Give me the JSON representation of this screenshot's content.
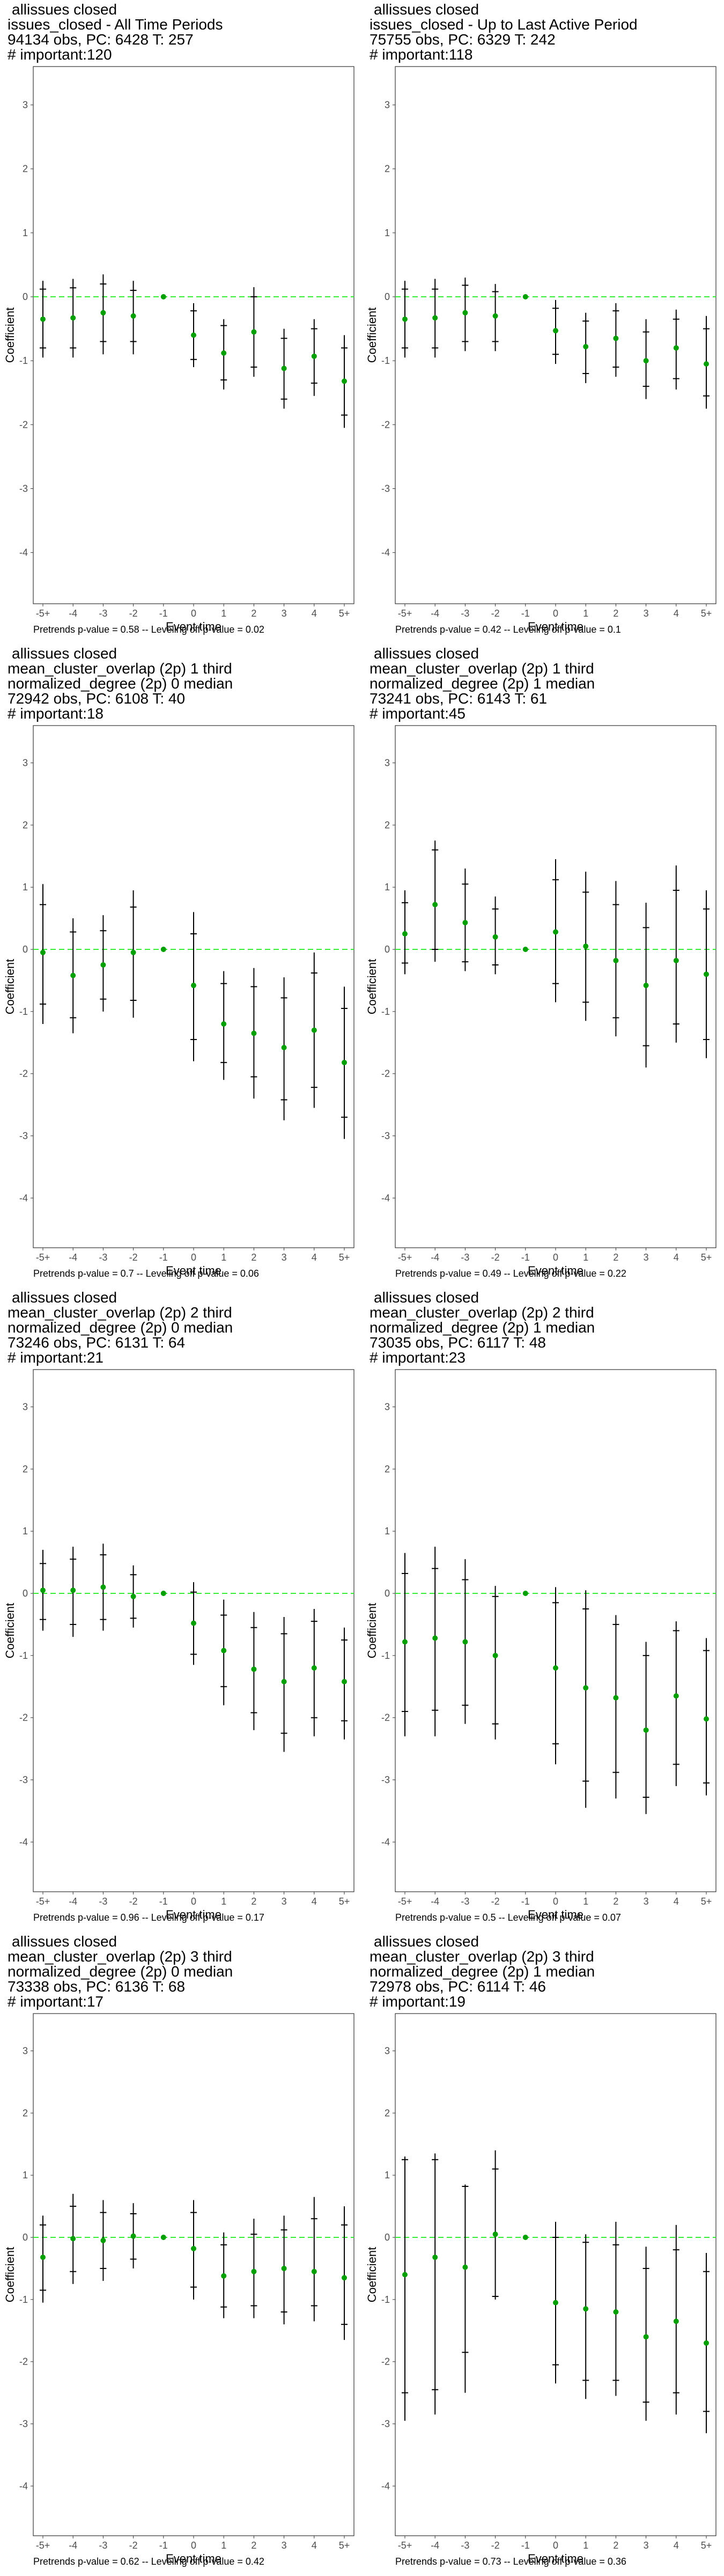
{
  "colors": {
    "point": "#00a000",
    "ci": "#000000",
    "zero_line": "#33ee33",
    "frame": "#333333",
    "tick_text": "#4d4d4d"
  },
  "chart_data": [
    {
      "type": "scatter",
      "title_lines": [
        "allissues closed",
        "issues_closed - All Time Periods",
        "94134 obs, PC: 6428 T: 257",
        "# important:120"
      ],
      "footer": "Pretrends p-value = 0.58 -- Leveling off p-value = 0.02",
      "xlabel": "Event time",
      "ylabel": "Coefficient",
      "categories": [
        "-5+",
        "-4",
        "-3",
        "-2",
        "-1",
        "0",
        "1",
        "2",
        "3",
        "4",
        "5+"
      ],
      "ylim": [
        -4.8,
        3.6
      ],
      "yticks": [
        -4,
        -3,
        -2,
        -1,
        0,
        1,
        2,
        3
      ],
      "values": [
        -0.35,
        -0.33,
        -0.25,
        -0.3,
        0,
        -0.6,
        -0.88,
        -0.55,
        -1.12,
        -0.93,
        -1.32
      ],
      "ci_outer": [
        [
          -0.95,
          0.25
        ],
        [
          -0.95,
          0.28
        ],
        [
          -0.9,
          0.35
        ],
        [
          -0.9,
          0.25
        ],
        [
          0,
          0
        ],
        [
          -1.1,
          -0.1
        ],
        [
          -1.45,
          -0.35
        ],
        [
          -1.25,
          0.15
        ],
        [
          -1.75,
          -0.5
        ],
        [
          -1.55,
          -0.35
        ],
        [
          -2.05,
          -0.6
        ]
      ],
      "ci_inner": [
        [
          -0.8,
          0.12
        ],
        [
          -0.8,
          0.14
        ],
        [
          -0.7,
          0.2
        ],
        [
          -0.7,
          0.1
        ],
        [
          0,
          0
        ],
        [
          -0.98,
          -0.22
        ],
        [
          -1.3,
          -0.45
        ],
        [
          -1.1,
          0.0
        ],
        [
          -1.6,
          -0.65
        ],
        [
          -1.35,
          -0.5
        ],
        [
          -1.85,
          -0.8
        ]
      ]
    },
    {
      "type": "scatter",
      "title_lines": [
        "allissues closed",
        "issues_closed - Up to Last Active Period",
        "75755 obs, PC: 6329 T: 242",
        "# important:118"
      ],
      "footer": "Pretrends p-value = 0.42 -- Leveling off p-value = 0.1",
      "xlabel": "Event time",
      "ylabel": "Coefficient",
      "categories": [
        "-5+",
        "-4",
        "-3",
        "-2",
        "-1",
        "0",
        "1",
        "2",
        "3",
        "4",
        "5+"
      ],
      "ylim": [
        -4.8,
        3.6
      ],
      "yticks": [
        -4,
        -3,
        -2,
        -1,
        0,
        1,
        2,
        3
      ],
      "values": [
        -0.35,
        -0.33,
        -0.25,
        -0.3,
        0,
        -0.53,
        -0.78,
        -0.65,
        -1.0,
        -0.8,
        -1.05
      ],
      "ci_outer": [
        [
          -0.95,
          0.25
        ],
        [
          -0.95,
          0.28
        ],
        [
          -0.85,
          0.3
        ],
        [
          -0.85,
          0.2
        ],
        [
          0,
          0
        ],
        [
          -1.05,
          -0.05
        ],
        [
          -1.35,
          -0.25
        ],
        [
          -1.25,
          -0.1
        ],
        [
          -1.6,
          -0.35
        ],
        [
          -1.45,
          -0.2
        ],
        [
          -1.75,
          -0.3
        ]
      ],
      "ci_inner": [
        [
          -0.8,
          0.12
        ],
        [
          -0.8,
          0.12
        ],
        [
          -0.7,
          0.18
        ],
        [
          -0.7,
          0.08
        ],
        [
          0,
          0
        ],
        [
          -0.9,
          -0.18
        ],
        [
          -1.2,
          -0.38
        ],
        [
          -1.1,
          -0.22
        ],
        [
          -1.4,
          -0.55
        ],
        [
          -1.28,
          -0.35
        ],
        [
          -1.55,
          -0.5
        ]
      ]
    },
    {
      "type": "scatter",
      "title_lines": [
        "allissues closed",
        "mean_cluster_overlap (2p) 1 third",
        "normalized_degree (2p) 0 median",
        "72942 obs, PC: 6108 T: 40",
        "# important:18"
      ],
      "footer": "Pretrends p-value = 0.7 -- Leveling off p-value = 0.06",
      "xlabel": "Event time",
      "ylabel": "Coefficient",
      "categories": [
        "-5+",
        "-4",
        "-3",
        "-2",
        "-1",
        "0",
        "1",
        "2",
        "3",
        "4",
        "5+"
      ],
      "ylim": [
        -4.8,
        3.6
      ],
      "yticks": [
        -4,
        -3,
        -2,
        -1,
        0,
        1,
        2,
        3
      ],
      "values": [
        -0.05,
        -0.42,
        -0.25,
        -0.05,
        0,
        -0.58,
        -1.2,
        -1.35,
        -1.58,
        -1.3,
        -1.82
      ],
      "ci_outer": [
        [
          -1.2,
          1.05
        ],
        [
          -1.35,
          0.5
        ],
        [
          -1.0,
          0.55
        ],
        [
          -1.1,
          0.95
        ],
        [
          0,
          0
        ],
        [
          -1.8,
          0.6
        ],
        [
          -2.1,
          -0.35
        ],
        [
          -2.4,
          -0.3
        ],
        [
          -2.75,
          -0.45
        ],
        [
          -2.55,
          -0.05
        ],
        [
          -3.05,
          -0.6
        ]
      ],
      "ci_inner": [
        [
          -0.88,
          0.72
        ],
        [
          -1.1,
          0.28
        ],
        [
          -0.8,
          0.3
        ],
        [
          -0.82,
          0.68
        ],
        [
          0,
          0
        ],
        [
          -1.45,
          0.25
        ],
        [
          -1.82,
          -0.55
        ],
        [
          -2.05,
          -0.6
        ],
        [
          -2.42,
          -0.78
        ],
        [
          -2.22,
          -0.38
        ],
        [
          -2.7,
          -0.95
        ]
      ]
    },
    {
      "type": "scatter",
      "title_lines": [
        "allissues closed",
        "mean_cluster_overlap (2p) 1 third",
        "normalized_degree (2p) 1 median",
        "73241 obs, PC: 6143 T: 61",
        "# important:45"
      ],
      "footer": "Pretrends p-value = 0.49 -- Leveling off p-value = 0.22",
      "xlabel": "Event time",
      "ylabel": "Coefficient",
      "categories": [
        "-5+",
        "-4",
        "-3",
        "-2",
        "-1",
        "0",
        "1",
        "2",
        "3",
        "4",
        "5+"
      ],
      "ylim": [
        -4.8,
        3.6
      ],
      "yticks": [
        -4,
        -3,
        -2,
        -1,
        0,
        1,
        2,
        3
      ],
      "values": [
        0.25,
        0.72,
        0.43,
        0.2,
        0,
        0.28,
        0.05,
        -0.18,
        -0.58,
        -0.18,
        -0.4
      ],
      "ci_outer": [
        [
          -0.4,
          0.95
        ],
        [
          -0.2,
          1.75
        ],
        [
          -0.35,
          1.3
        ],
        [
          -0.4,
          0.85
        ],
        [
          0,
          0
        ],
        [
          -0.85,
          1.45
        ],
        [
          -1.15,
          1.25
        ],
        [
          -1.4,
          1.1
        ],
        [
          -1.9,
          0.75
        ],
        [
          -1.5,
          1.35
        ],
        [
          -1.75,
          0.95
        ]
      ],
      "ci_inner": [
        [
          -0.22,
          0.75
        ],
        [
          0.0,
          1.6
        ],
        [
          -0.2,
          1.05
        ],
        [
          -0.25,
          0.65
        ],
        [
          0,
          0
        ],
        [
          -0.55,
          1.12
        ],
        [
          -0.85,
          0.92
        ],
        [
          -1.1,
          0.72
        ],
        [
          -1.55,
          0.35
        ],
        [
          -1.2,
          0.95
        ],
        [
          -1.45,
          0.65
        ]
      ]
    },
    {
      "type": "scatter",
      "title_lines": [
        "allissues closed",
        "mean_cluster_overlap (2p) 2 third",
        "normalized_degree (2p) 0 median",
        "73246 obs, PC: 6131 T: 64",
        "# important:21"
      ],
      "footer": "Pretrends p-value = 0.96 -- Leveling off p-value = 0.17",
      "xlabel": "Event time",
      "ylabel": "Coefficient",
      "categories": [
        "-5+",
        "-4",
        "-3",
        "-2",
        "-1",
        "0",
        "1",
        "2",
        "3",
        "4",
        "5+"
      ],
      "ylim": [
        -4.8,
        3.6
      ],
      "yticks": [
        -4,
        -3,
        -2,
        -1,
        0,
        1,
        2,
        3
      ],
      "values": [
        0.05,
        0.05,
        0.1,
        -0.05,
        0,
        -0.48,
        -0.92,
        -1.22,
        -1.42,
        -1.2,
        -1.42
      ],
      "ci_outer": [
        [
          -0.6,
          0.7
        ],
        [
          -0.7,
          0.75
        ],
        [
          -0.6,
          0.8
        ],
        [
          -0.55,
          0.45
        ],
        [
          0,
          0
        ],
        [
          -1.15,
          0.18
        ],
        [
          -1.8,
          -0.1
        ],
        [
          -2.2,
          -0.3
        ],
        [
          -2.55,
          -0.38
        ],
        [
          -2.3,
          -0.25
        ],
        [
          -2.35,
          -0.55
        ]
      ],
      "ci_inner": [
        [
          -0.42,
          0.48
        ],
        [
          -0.5,
          0.55
        ],
        [
          -0.42,
          0.62
        ],
        [
          -0.4,
          0.3
        ],
        [
          0,
          0
        ],
        [
          -0.98,
          0.02
        ],
        [
          -1.5,
          -0.35
        ],
        [
          -1.92,
          -0.55
        ],
        [
          -2.25,
          -0.65
        ],
        [
          -2.0,
          -0.45
        ],
        [
          -2.05,
          -0.75
        ]
      ]
    },
    {
      "type": "scatter",
      "title_lines": [
        "allissues closed",
        "mean_cluster_overlap (2p) 2 third",
        "normalized_degree (2p) 1 median",
        "73035 obs, PC: 6117 T: 48",
        "# important:23"
      ],
      "footer": "Pretrends p-value = 0.5 -- Leveling off p-value = 0.07",
      "xlabel": "Event time",
      "ylabel": "Coefficient",
      "categories": [
        "-5+",
        "-4",
        "-3",
        "-2",
        "-1",
        "0",
        "1",
        "2",
        "3",
        "4",
        "5+"
      ],
      "ylim": [
        -4.8,
        3.6
      ],
      "yticks": [
        -4,
        -3,
        -2,
        -1,
        0,
        1,
        2,
        3
      ],
      "values": [
        -0.78,
        -0.72,
        -0.78,
        -1.0,
        0,
        -1.2,
        -1.52,
        -1.68,
        -2.2,
        -1.65,
        -2.02
      ],
      "ci_outer": [
        [
          -2.3,
          0.65
        ],
        [
          -2.3,
          0.75
        ],
        [
          -2.1,
          0.55
        ],
        [
          -2.35,
          0.12
        ],
        [
          0,
          0
        ],
        [
          -2.75,
          0.1
        ],
        [
          -3.45,
          0.05
        ],
        [
          -3.3,
          -0.35
        ],
        [
          -3.55,
          -0.78
        ],
        [
          -3.1,
          -0.45
        ],
        [
          -3.25,
          -0.72
        ]
      ],
      "ci_inner": [
        [
          -1.9,
          0.32
        ],
        [
          -1.88,
          0.4
        ],
        [
          -1.8,
          0.22
        ],
        [
          -2.1,
          -0.05
        ],
        [
          0,
          0
        ],
        [
          -2.42,
          -0.15
        ],
        [
          -3.02,
          -0.25
        ],
        [
          -2.88,
          -0.5
        ],
        [
          -3.28,
          -1.0
        ],
        [
          -2.75,
          -0.6
        ],
        [
          -3.05,
          -0.92
        ]
      ]
    },
    {
      "type": "scatter",
      "title_lines": [
        "allissues closed",
        "mean_cluster_overlap (2p) 3 third",
        "normalized_degree (2p) 0 median",
        "73338 obs, PC: 6136 T: 68",
        "# important:17"
      ],
      "footer": "Pretrends p-value = 0.62 -- Leveling off p-value = 0.42",
      "xlabel": "Event time",
      "ylabel": "Coefficient",
      "categories": [
        "-5+",
        "-4",
        "-3",
        "-2",
        "-1",
        "0",
        "1",
        "2",
        "3",
        "4",
        "5+"
      ],
      "ylim": [
        -4.8,
        3.6
      ],
      "yticks": [
        -4,
        -3,
        -2,
        -1,
        0,
        1,
        2,
        3
      ],
      "values": [
        -0.32,
        -0.02,
        -0.05,
        0.02,
        0,
        -0.18,
        -0.62,
        -0.55,
        -0.5,
        -0.55,
        -0.65
      ],
      "ci_outer": [
        [
          -1.05,
          0.35
        ],
        [
          -0.75,
          0.7
        ],
        [
          -0.7,
          0.6
        ],
        [
          -0.5,
          0.55
        ],
        [
          0,
          0
        ],
        [
          -1.0,
          0.6
        ],
        [
          -1.3,
          0.08
        ],
        [
          -1.3,
          0.3
        ],
        [
          -1.4,
          0.35
        ],
        [
          -1.35,
          0.65
        ],
        [
          -1.65,
          0.5
        ]
      ],
      "ci_inner": [
        [
          -0.85,
          0.2
        ],
        [
          -0.55,
          0.5
        ],
        [
          -0.5,
          0.4
        ],
        [
          -0.35,
          0.38
        ],
        [
          0,
          0
        ],
        [
          -0.8,
          0.4
        ],
        [
          -1.12,
          -0.12
        ],
        [
          -1.1,
          0.05
        ],
        [
          -1.2,
          0.12
        ],
        [
          -1.1,
          0.3
        ],
        [
          -1.4,
          0.2
        ]
      ]
    },
    {
      "type": "scatter",
      "title_lines": [
        "allissues closed",
        "mean_cluster_overlap (2p) 3 third",
        "normalized_degree (2p) 1 median",
        "72978 obs, PC: 6114 T: 46",
        "# important:19"
      ],
      "footer": "Pretrends p-value = 0.73 -- Leveling off p-value = 0.36",
      "xlabel": "Event time",
      "ylabel": "Coefficient",
      "categories": [
        "-5+",
        "-4",
        "-3",
        "-2",
        "-1",
        "0",
        "1",
        "2",
        "3",
        "4",
        "5+"
      ],
      "ylim": [
        -4.8,
        3.6
      ],
      "yticks": [
        -4,
        -3,
        -2,
        -1,
        0,
        1,
        2,
        3
      ],
      "values": [
        -0.6,
        -0.32,
        -0.48,
        0.05,
        0,
        -1.05,
        -1.15,
        -1.2,
        -1.6,
        -1.35,
        -1.7
      ],
      "ci_outer": [
        [
          -2.95,
          1.3
        ],
        [
          -2.85,
          1.35
        ],
        [
          -2.5,
          0.85
        ],
        [
          -1.0,
          1.4
        ],
        [
          0,
          0
        ],
        [
          -2.35,
          0.25
        ],
        [
          -2.6,
          0.05
        ],
        [
          -2.55,
          0.25
        ],
        [
          -2.95,
          -0.15
        ],
        [
          -2.85,
          0.2
        ],
        [
          -3.15,
          -0.25
        ]
      ],
      "ci_inner": [
        [
          -2.5,
          1.25
        ],
        [
          -2.45,
          1.25
        ],
        [
          -1.85,
          0.82
        ],
        [
          -0.95,
          1.1
        ],
        [
          0,
          0
        ],
        [
          -2.05,
          0.0
        ],
        [
          -2.3,
          -0.08
        ],
        [
          -2.3,
          -0.12
        ],
        [
          -2.65,
          -0.5
        ],
        [
          -2.5,
          -0.2
        ],
        [
          -2.8,
          -0.55
        ]
      ]
    }
  ]
}
